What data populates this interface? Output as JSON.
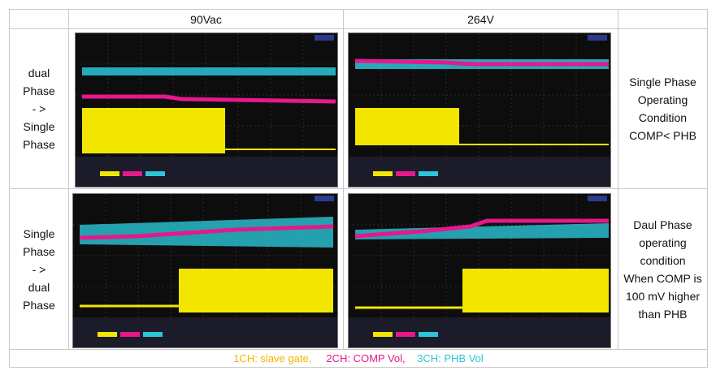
{
  "header": {
    "col_90": "90Vac",
    "col_264": "264V"
  },
  "rows": [
    {
      "left_label": [
        "dual",
        "Phase",
        "- >",
        "Single",
        "Phase"
      ],
      "right_label": [
        "Single Phase",
        "Operating",
        "Condition",
        "COMP< PHB"
      ]
    },
    {
      "left_label": [
        "Single",
        "Phase",
        "- >",
        "dual",
        "Phase"
      ],
      "right_label": [
        "Daul Phase",
        "operating",
        "condition",
        "When COMP is",
        "100 mV higher",
        "than PHB"
      ]
    }
  ],
  "footer": {
    "ch1": "1CH: slave gate,",
    "ch2": "2CH: COMP Vol,",
    "ch3": "3CH: PHB Vol"
  },
  "colors": {
    "ch1": "#f2e600",
    "ch2": "#e6188c",
    "ch3": "#2cc6d8",
    "ch1_text": "#f4b400",
    "ch2_text": "#e6188c",
    "ch3_text": "#2cc6d8",
    "scope_bg": "#0d0d0d"
  }
}
